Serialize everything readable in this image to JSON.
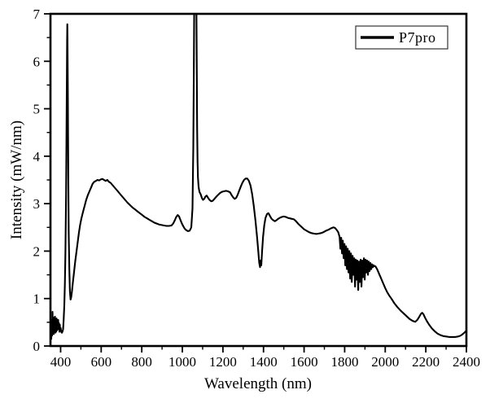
{
  "figure": {
    "legend": {
      "label": "P7pro",
      "line_color": "#000000"
    },
    "x_axis": {
      "label": "Wavelength (nm)"
    },
    "y_axis": {
      "label": "Intensity (mW/nm)"
    },
    "frame_color": "#000000",
    "background_color": "#ffffff"
  },
  "chart_data": {
    "type": "line",
    "title": "",
    "xlabel": "Wavelength (nm)",
    "ylabel": "Intensity (mW/nm)",
    "xlim": [
      350,
      2400
    ],
    "ylim": [
      0,
      7
    ],
    "x_major_ticks": [
      400,
      600,
      800,
      1000,
      1200,
      1400,
      1600,
      1800,
      2000,
      2200,
      2400
    ],
    "x_minor_ticks": [
      500,
      700,
      900,
      1100,
      1300,
      1500,
      1700,
      1900,
      2100,
      2300
    ],
    "y_major_ticks": [
      0,
      1,
      2,
      3,
      4,
      5,
      6,
      7
    ],
    "y_minor_ticks": [
      0.5,
      1.5,
      2.5,
      3.5,
      4.5,
      5.5,
      6.5
    ],
    "grid": false,
    "legend_position": "top-right",
    "series": [
      {
        "name": "P7pro",
        "color": "#000000",
        "points": [
          [
            350,
            0.1
          ],
          [
            352,
            0.42
          ],
          [
            354,
            0.15
          ],
          [
            356,
            0.55
          ],
          [
            358,
            0.22
          ],
          [
            360,
            0.72
          ],
          [
            362,
            0.3
          ],
          [
            364,
            0.6
          ],
          [
            366,
            0.25
          ],
          [
            368,
            0.55
          ],
          [
            370,
            0.35
          ],
          [
            372,
            0.62
          ],
          [
            374,
            0.28
          ],
          [
            376,
            0.5
          ],
          [
            378,
            0.3
          ],
          [
            380,
            0.58
          ],
          [
            382,
            0.33
          ],
          [
            384,
            0.52
          ],
          [
            386,
            0.38
          ],
          [
            388,
            0.55
          ],
          [
            390,
            0.35
          ],
          [
            392,
            0.48
          ],
          [
            394,
            0.3
          ],
          [
            396,
            0.45
          ],
          [
            398,
            0.32
          ],
          [
            400,
            0.38
          ],
          [
            403,
            0.3
          ],
          [
            406,
            0.28
          ],
          [
            409,
            0.3
          ],
          [
            412,
            0.35
          ],
          [
            415,
            0.55
          ],
          [
            418,
            0.85
          ],
          [
            421,
            1.3
          ],
          [
            424,
            2.0
          ],
          [
            427,
            3.2
          ],
          [
            430,
            5.0
          ],
          [
            432,
            6.4
          ],
          [
            433,
            6.78
          ],
          [
            434,
            6.5
          ],
          [
            436,
            5.2
          ],
          [
            438,
            3.6
          ],
          [
            440,
            2.4
          ],
          [
            443,
            1.6
          ],
          [
            446,
            1.15
          ],
          [
            449,
            0.98
          ],
          [
            452,
            1.02
          ],
          [
            456,
            1.15
          ],
          [
            460,
            1.32
          ],
          [
            466,
            1.55
          ],
          [
            472,
            1.78
          ],
          [
            478,
            1.98
          ],
          [
            484,
            2.18
          ],
          [
            490,
            2.38
          ],
          [
            496,
            2.55
          ],
          [
            502,
            2.68
          ],
          [
            510,
            2.82
          ],
          [
            518,
            2.95
          ],
          [
            526,
            3.08
          ],
          [
            534,
            3.18
          ],
          [
            542,
            3.26
          ],
          [
            550,
            3.34
          ],
          [
            558,
            3.42
          ],
          [
            566,
            3.46
          ],
          [
            574,
            3.48
          ],
          [
            582,
            3.5
          ],
          [
            590,
            3.49
          ],
          [
            598,
            3.51
          ],
          [
            606,
            3.52
          ],
          [
            614,
            3.5
          ],
          [
            622,
            3.48
          ],
          [
            630,
            3.5
          ],
          [
            638,
            3.46
          ],
          [
            646,
            3.44
          ],
          [
            658,
            3.38
          ],
          [
            670,
            3.32
          ],
          [
            682,
            3.26
          ],
          [
            694,
            3.2
          ],
          [
            706,
            3.14
          ],
          [
            718,
            3.08
          ],
          [
            730,
            3.02
          ],
          [
            742,
            2.97
          ],
          [
            754,
            2.92
          ],
          [
            766,
            2.88
          ],
          [
            778,
            2.84
          ],
          [
            790,
            2.8
          ],
          [
            802,
            2.76
          ],
          [
            814,
            2.72
          ],
          [
            826,
            2.69
          ],
          [
            838,
            2.66
          ],
          [
            850,
            2.63
          ],
          [
            862,
            2.6
          ],
          [
            874,
            2.58
          ],
          [
            886,
            2.56
          ],
          [
            898,
            2.55
          ],
          [
            910,
            2.54
          ],
          [
            922,
            2.53
          ],
          [
            934,
            2.53
          ],
          [
            946,
            2.54
          ],
          [
            955,
            2.58
          ],
          [
            963,
            2.65
          ],
          [
            970,
            2.72
          ],
          [
            977,
            2.76
          ],
          [
            984,
            2.73
          ],
          [
            991,
            2.65
          ],
          [
            998,
            2.58
          ],
          [
            1005,
            2.52
          ],
          [
            1012,
            2.47
          ],
          [
            1020,
            2.44
          ],
          [
            1028,
            2.42
          ],
          [
            1036,
            2.43
          ],
          [
            1044,
            2.5
          ],
          [
            1050,
            2.9
          ],
          [
            1054,
            4.2
          ],
          [
            1057,
            6.0
          ],
          [
            1059,
            7.4
          ],
          [
            1069,
            7.4
          ],
          [
            1071,
            6.0
          ],
          [
            1073,
            4.6
          ],
          [
            1075,
            3.9
          ],
          [
            1077,
            3.55
          ],
          [
            1080,
            3.35
          ],
          [
            1084,
            3.25
          ],
          [
            1090,
            3.2
          ],
          [
            1096,
            3.12
          ],
          [
            1102,
            3.08
          ],
          [
            1108,
            3.1
          ],
          [
            1114,
            3.15
          ],
          [
            1120,
            3.17
          ],
          [
            1127,
            3.12
          ],
          [
            1134,
            3.08
          ],
          [
            1142,
            3.05
          ],
          [
            1150,
            3.06
          ],
          [
            1158,
            3.1
          ],
          [
            1166,
            3.14
          ],
          [
            1175,
            3.18
          ],
          [
            1185,
            3.22
          ],
          [
            1195,
            3.25
          ],
          [
            1205,
            3.26
          ],
          [
            1215,
            3.27
          ],
          [
            1225,
            3.26
          ],
          [
            1235,
            3.24
          ],
          [
            1243,
            3.18
          ],
          [
            1251,
            3.13
          ],
          [
            1258,
            3.1
          ],
          [
            1265,
            3.12
          ],
          [
            1272,
            3.18
          ],
          [
            1280,
            3.27
          ],
          [
            1288,
            3.36
          ],
          [
            1296,
            3.44
          ],
          [
            1304,
            3.5
          ],
          [
            1312,
            3.53
          ],
          [
            1320,
            3.53
          ],
          [
            1328,
            3.48
          ],
          [
            1336,
            3.38
          ],
          [
            1344,
            3.2
          ],
          [
            1352,
            2.95
          ],
          [
            1360,
            2.65
          ],
          [
            1368,
            2.3
          ],
          [
            1374,
            2.0
          ],
          [
            1379,
            1.75
          ],
          [
            1383,
            1.66
          ],
          [
            1386,
            1.8
          ],
          [
            1389,
            1.7
          ],
          [
            1393,
            2.0
          ],
          [
            1398,
            2.3
          ],
          [
            1404,
            2.55
          ],
          [
            1410,
            2.7
          ],
          [
            1417,
            2.78
          ],
          [
            1424,
            2.8
          ],
          [
            1432,
            2.74
          ],
          [
            1440,
            2.68
          ],
          [
            1448,
            2.65
          ],
          [
            1456,
            2.63
          ],
          [
            1464,
            2.65
          ],
          [
            1472,
            2.68
          ],
          [
            1480,
            2.7
          ],
          [
            1490,
            2.72
          ],
          [
            1500,
            2.73
          ],
          [
            1510,
            2.72
          ],
          [
            1520,
            2.7
          ],
          [
            1530,
            2.69
          ],
          [
            1540,
            2.68
          ],
          [
            1550,
            2.67
          ],
          [
            1560,
            2.63
          ],
          [
            1570,
            2.58
          ],
          [
            1580,
            2.54
          ],
          [
            1590,
            2.5
          ],
          [
            1600,
            2.46
          ],
          [
            1612,
            2.43
          ],
          [
            1624,
            2.4
          ],
          [
            1636,
            2.38
          ],
          [
            1648,
            2.37
          ],
          [
            1660,
            2.36
          ],
          [
            1672,
            2.37
          ],
          [
            1684,
            2.38
          ],
          [
            1696,
            2.4
          ],
          [
            1708,
            2.43
          ],
          [
            1720,
            2.45
          ],
          [
            1732,
            2.48
          ],
          [
            1744,
            2.5
          ],
          [
            1752,
            2.49
          ],
          [
            1760,
            2.45
          ],
          [
            1768,
            2.4
          ],
          [
            1775,
            2.3
          ],
          [
            1779,
            2.05
          ],
          [
            1783,
            2.28
          ],
          [
            1787,
            1.95
          ],
          [
            1791,
            2.22
          ],
          [
            1795,
            1.85
          ],
          [
            1799,
            2.15
          ],
          [
            1803,
            1.7
          ],
          [
            1807,
            2.1
          ],
          [
            1811,
            1.62
          ],
          [
            1815,
            2.05
          ],
          [
            1819,
            1.55
          ],
          [
            1823,
            2.0
          ],
          [
            1827,
            1.42
          ],
          [
            1831,
            1.95
          ],
          [
            1835,
            1.35
          ],
          [
            1839,
            1.9
          ],
          [
            1843,
            1.5
          ],
          [
            1847,
            1.85
          ],
          [
            1851,
            1.25
          ],
          [
            1855,
            1.82
          ],
          [
            1859,
            1.4
          ],
          [
            1863,
            1.8
          ],
          [
            1867,
            1.18
          ],
          [
            1871,
            1.78
          ],
          [
            1875,
            1.35
          ],
          [
            1879,
            1.82
          ],
          [
            1883,
            1.25
          ],
          [
            1887,
            1.8
          ],
          [
            1891,
            1.45
          ],
          [
            1895,
            1.85
          ],
          [
            1899,
            1.4
          ],
          [
            1903,
            1.82
          ],
          [
            1907,
            1.55
          ],
          [
            1911,
            1.8
          ],
          [
            1915,
            1.5
          ],
          [
            1919,
            1.78
          ],
          [
            1923,
            1.58
          ],
          [
            1927,
            1.75
          ],
          [
            1931,
            1.62
          ],
          [
            1935,
            1.72
          ],
          [
            1939,
            1.66
          ],
          [
            1943,
            1.7
          ],
          [
            1947,
            1.68
          ],
          [
            1952,
            1.68
          ],
          [
            1960,
            1.62
          ],
          [
            1970,
            1.52
          ],
          [
            1980,
            1.42
          ],
          [
            1990,
            1.32
          ],
          [
            2000,
            1.22
          ],
          [
            2010,
            1.13
          ],
          [
            2020,
            1.06
          ],
          [
            2030,
            1.0
          ],
          [
            2045,
            0.9
          ],
          [
            2060,
            0.82
          ],
          [
            2075,
            0.75
          ],
          [
            2090,
            0.69
          ],
          [
            2105,
            0.63
          ],
          [
            2120,
            0.57
          ],
          [
            2135,
            0.53
          ],
          [
            2148,
            0.51
          ],
          [
            2158,
            0.55
          ],
          [
            2168,
            0.62
          ],
          [
            2176,
            0.68
          ],
          [
            2182,
            0.7
          ],
          [
            2188,
            0.67
          ],
          [
            2196,
            0.6
          ],
          [
            2206,
            0.52
          ],
          [
            2218,
            0.44
          ],
          [
            2230,
            0.37
          ],
          [
            2244,
            0.31
          ],
          [
            2258,
            0.26
          ],
          [
            2272,
            0.23
          ],
          [
            2286,
            0.21
          ],
          [
            2300,
            0.2
          ],
          [
            2315,
            0.19
          ],
          [
            2330,
            0.19
          ],
          [
            2345,
            0.19
          ],
          [
            2360,
            0.2
          ],
          [
            2372,
            0.22
          ],
          [
            2382,
            0.25
          ],
          [
            2392,
            0.29
          ],
          [
            2400,
            0.32
          ]
        ]
      }
    ]
  }
}
